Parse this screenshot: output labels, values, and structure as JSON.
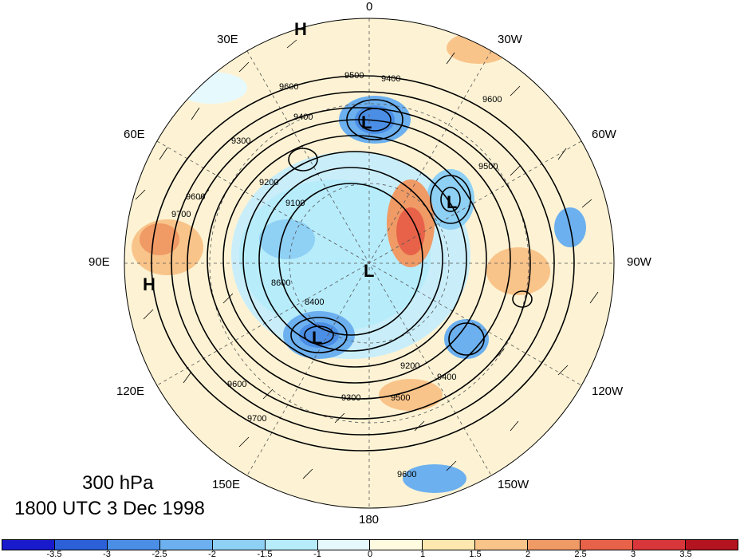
{
  "title": {
    "level": "300 hPa",
    "time": "1800 UTC 3 Dec 1998"
  },
  "longitude_labels": {
    "lon_0": "0",
    "lon_30w": "30W",
    "lon_60w": "60W",
    "lon_90w": "90W",
    "lon_120w": "120W",
    "lon_150w": "150W",
    "lon_180": "180",
    "lon_150e": "150E",
    "lon_120e": "120E",
    "lon_90e": "90E",
    "lon_60e": "60E",
    "lon_30e": "30E"
  },
  "pressure_centers": {
    "high_north": "H",
    "high_west": "H",
    "low_1": "L",
    "low_2": "L",
    "low_3": "L",
    "low_4": "L"
  },
  "contour_labels": {
    "c1": "9600",
    "c2": "9500",
    "c3": "9400",
    "c4": "9400",
    "c5": "9300",
    "c6": "9200",
    "c7": "9100",
    "c8": "8400",
    "c9": "8600",
    "c10": "9700",
    "c11": "9600",
    "c12": "9300",
    "c13": "9200",
    "c14": "9500",
    "c15": "9400",
    "c16": "9600",
    "c17": "9700",
    "c18": "9600",
    "c19": "9500",
    "c20": "9600"
  },
  "colorbar": {
    "colors": [
      "#1a1acd",
      "#2b60d8",
      "#4b8ee6",
      "#6cb0ef",
      "#8fd0f5",
      "#b7ecfb",
      "#e6f9fd",
      "#fffbe1",
      "#fde8b0",
      "#f9c48a",
      "#f09a66",
      "#e8624a",
      "#d8363a",
      "#b3141f"
    ],
    "labels": [
      "-3.5",
      "-3",
      "-2.5",
      "-2",
      "-1.5",
      "-1",
      "0",
      "1",
      "1.5",
      "2",
      "2.5",
      "3",
      "3.5"
    ]
  },
  "colors": {
    "warm": "#f4a074",
    "cold": "#5b9fe6",
    "neutral": "#fdf3d4"
  }
}
